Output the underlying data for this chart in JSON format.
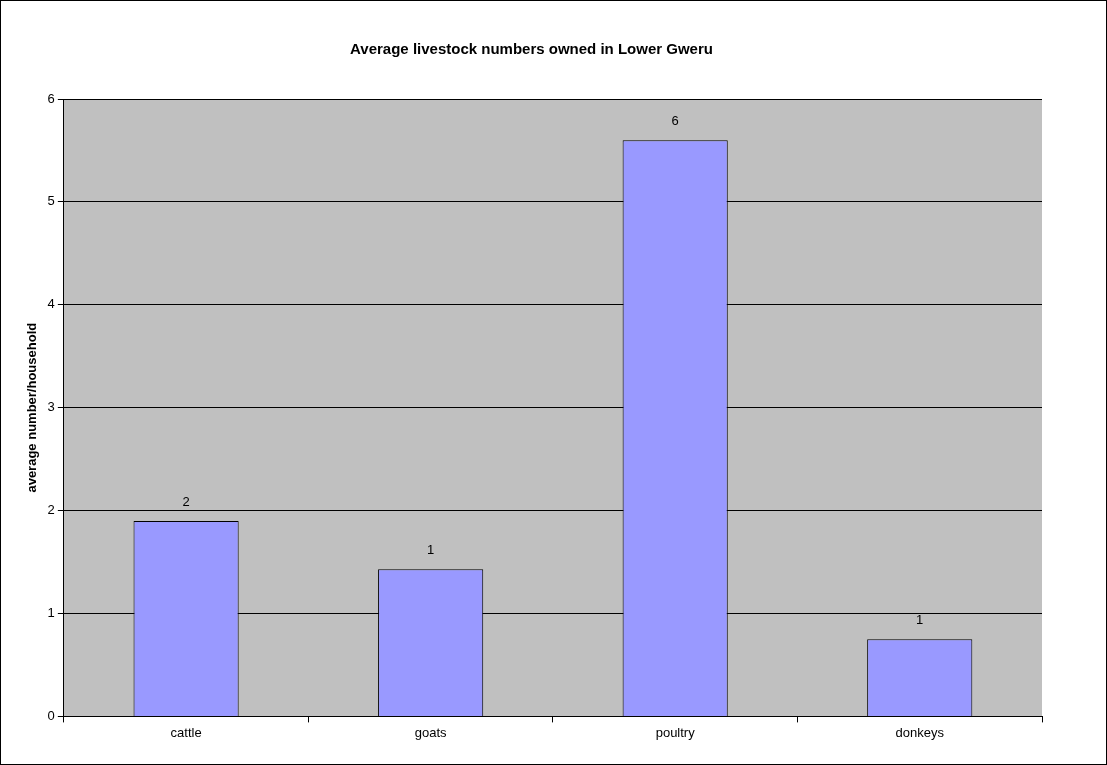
{
  "chart_data": {
    "type": "bar",
    "title": "Average livestock numbers owned in Lower Gweru",
    "ylabel": "average number/household",
    "categories": [
      "cattle",
      "goats",
      "poultry",
      "donkeys"
    ],
    "values": [
      1.9,
      1.43,
      5.6,
      0.75
    ],
    "value_labels": [
      "2",
      "1",
      "6",
      "1"
    ],
    "color": "#9999ff",
    "ylim": [
      0,
      6
    ],
    "yticks": [
      0,
      1,
      2,
      3,
      4,
      5,
      6
    ],
    "grid": "y",
    "legend": false
  }
}
